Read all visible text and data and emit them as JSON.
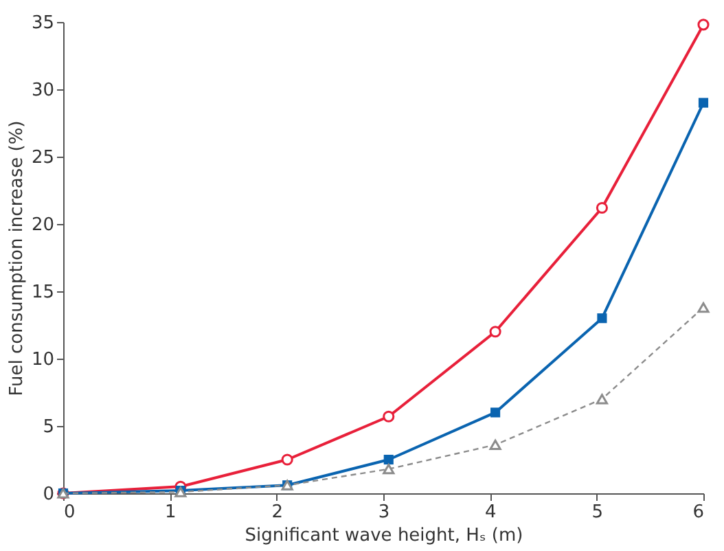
{
  "chart_data": {
    "type": "line",
    "xlabel": "Significant wave height, Hₛ (m)",
    "ylabel": "Fuel consumption increase (%)",
    "xlim": [
      0,
      6
    ],
    "ylim": [
      0,
      35
    ],
    "xticks": [
      0,
      1,
      2,
      3,
      4,
      5,
      6
    ],
    "yticks": [
      0,
      5,
      10,
      15,
      20,
      25,
      30,
      35
    ],
    "grid": false,
    "series": [
      {
        "color": "#e8203a",
        "marker": "circle",
        "line_style": "solid",
        "x": [
          0,
          1.1,
          2.1,
          3.05,
          4.05,
          5.05,
          6
        ],
        "values": [
          0,
          0.5,
          2.5,
          5.7,
          12,
          21.2,
          34.8
        ]
      },
      {
        "color": "#0a64b0",
        "marker": "square",
        "line_style": "solid",
        "x": [
          0,
          1.1,
          2.1,
          3.05,
          4.05,
          5.05,
          6
        ],
        "values": [
          0,
          0.2,
          0.6,
          2.5,
          6,
          13,
          29
        ]
      },
      {
        "color": "#8c8c8c",
        "marker": "triangle",
        "line_style": "dashed",
        "x": [
          0,
          1.1,
          2.1,
          3.05,
          4.05,
          5.05,
          6
        ],
        "values": [
          0,
          0.1,
          0.6,
          1.8,
          3.6,
          7,
          13.8
        ]
      }
    ]
  }
}
